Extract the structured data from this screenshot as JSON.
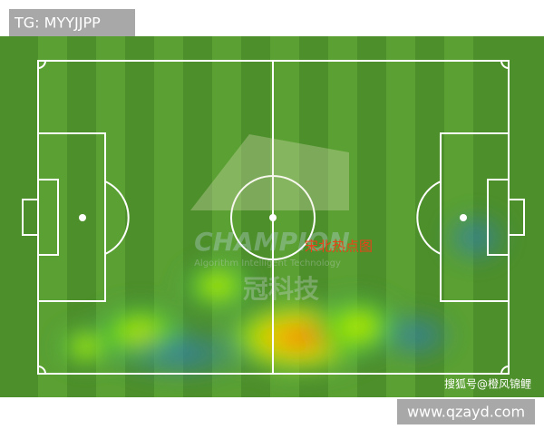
{
  "header": {
    "tag": "TG: MYYJJPP"
  },
  "watermark": {
    "brand": "CHAMPION",
    "tagline": "Algorithm Intelligent Technology",
    "chinese": "冠科技"
  },
  "heatmap": {
    "label": "宋北热点图"
  },
  "footer": {
    "credit": "搜狐号@橙风锦鲤",
    "site": "www.qzayd.com"
  }
}
